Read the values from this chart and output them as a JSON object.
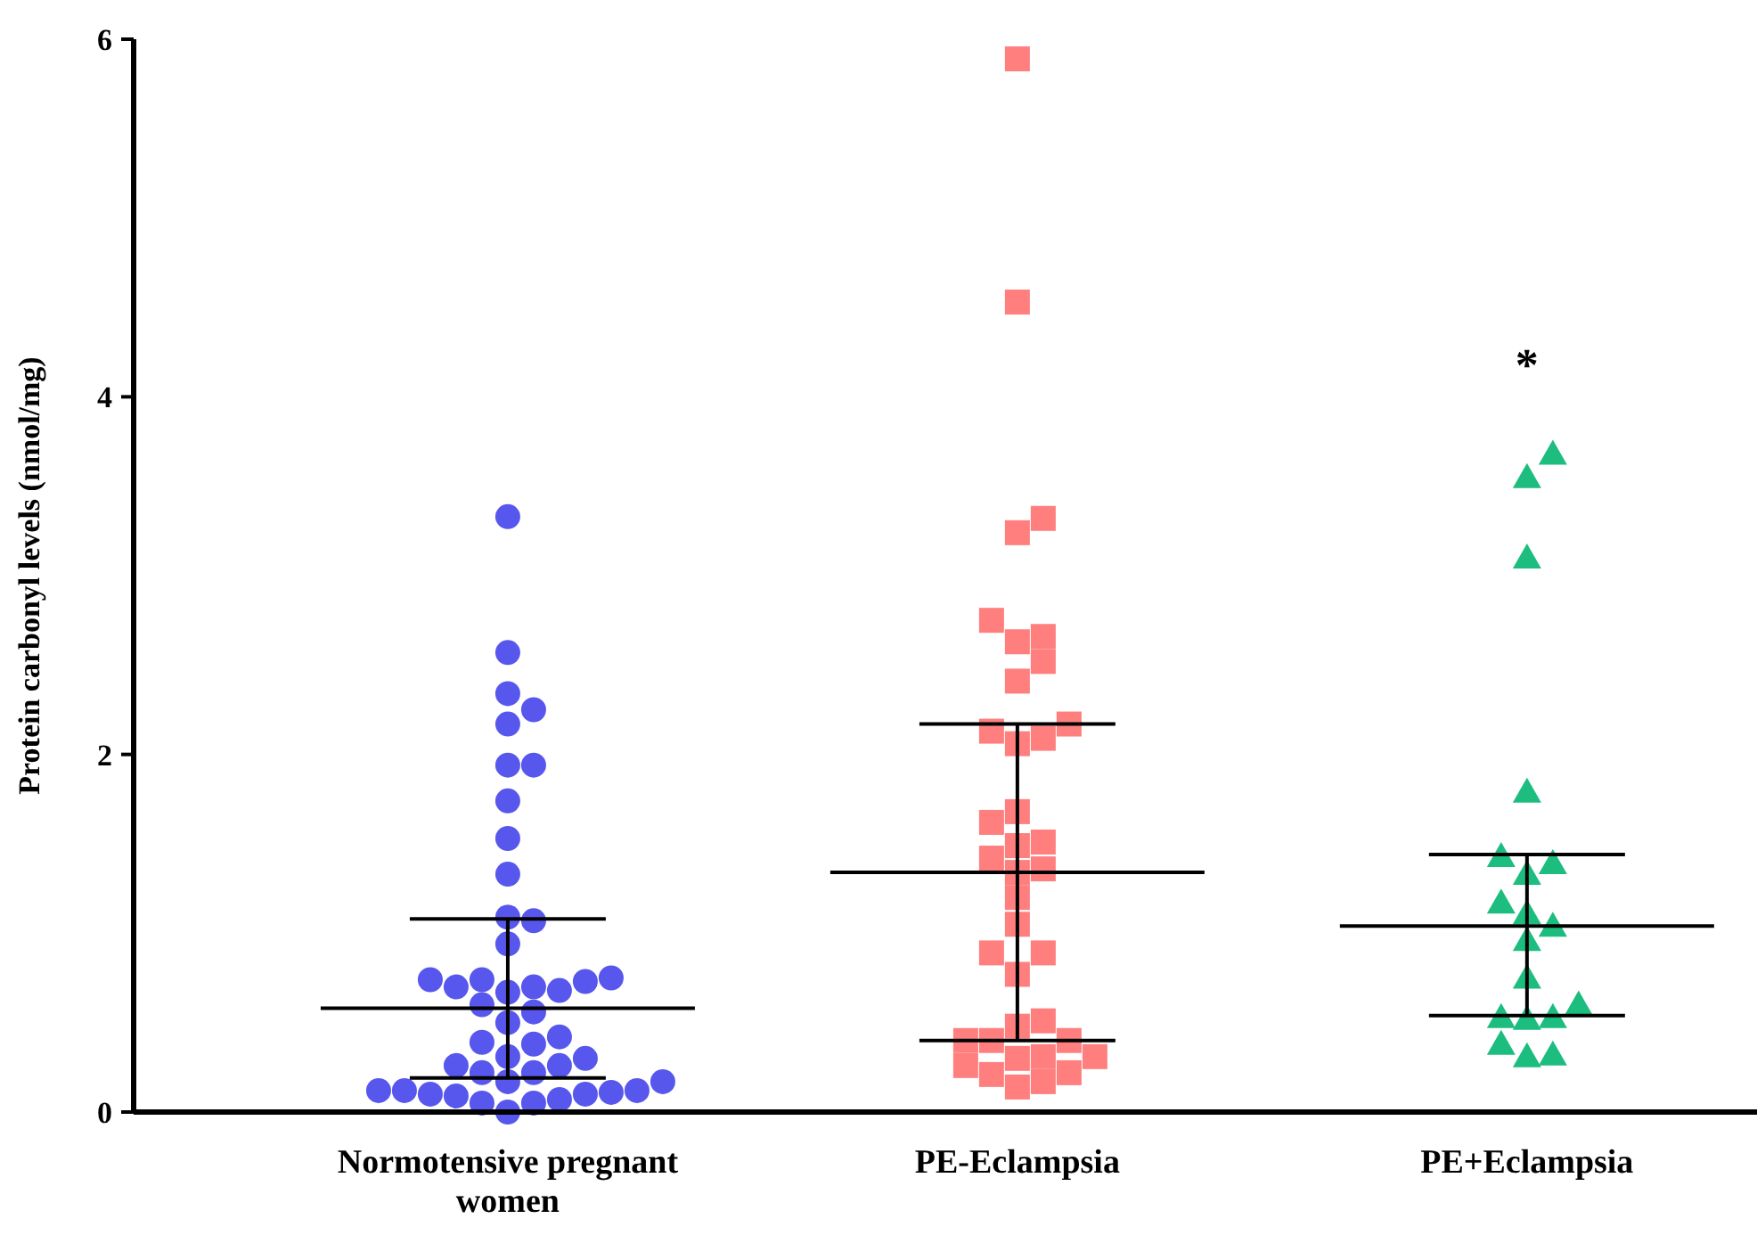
{
  "chart_data": {
    "type": "scatter",
    "ylabel": "Protein carbonyl levels (nmol/mg)",
    "categories": [
      "Normotensive pregnant women",
      "PE-Eclampsia",
      "PE+Eclampsia"
    ],
    "ylim": [
      0,
      6
    ],
    "yticks": [
      0,
      2,
      4,
      6
    ],
    "grid": false,
    "series": [
      {
        "marker": "circle",
        "color": "#5757ee",
        "x": [
          "Normotensive pregnant women",
          "Normotensive pregnant women",
          "Normotensive pregnant women",
          "Normotensive pregnant women",
          "Normotensive pregnant women",
          "Normotensive pregnant women",
          "Normotensive pregnant women",
          "Normotensive pregnant women",
          "Normotensive pregnant women",
          "Normotensive pregnant women",
          "Normotensive pregnant women",
          "Normotensive pregnant women",
          "Normotensive pregnant women",
          "Normotensive pregnant women",
          "Normotensive pregnant women",
          "Normotensive pregnant women",
          "Normotensive pregnant women",
          "Normotensive pregnant women",
          "Normotensive pregnant women",
          "Normotensive pregnant women",
          "Normotensive pregnant women",
          "Normotensive pregnant women",
          "Normotensive pregnant women",
          "Normotensive pregnant women",
          "Normotensive pregnant women",
          "Normotensive pregnant women",
          "Normotensive pregnant women",
          "Normotensive pregnant women",
          "Normotensive pregnant women",
          "Normotensive pregnant women",
          "Normotensive pregnant women",
          "Normotensive pregnant women",
          "Normotensive pregnant women",
          "Normotensive pregnant women",
          "Normotensive pregnant women",
          "Normotensive pregnant women",
          "Normotensive pregnant women",
          "Normotensive pregnant women",
          "Normotensive pregnant women",
          "Normotensive pregnant women",
          "Normotensive pregnant women",
          "Normotensive pregnant women",
          "Normotensive pregnant women",
          "Normotensive pregnant women",
          "Normotensive pregnant women",
          "Normotensive pregnant women"
        ],
        "values": [
          3.33,
          2.57,
          2.34,
          2.25,
          2.17,
          1.94,
          1.94,
          1.74,
          1.53,
          1.33,
          1.09,
          1.07,
          0.94,
          0.75,
          0.74,
          0.7,
          0.68,
          0.67,
          0.7,
          0.73,
          0.74,
          0.6,
          0.56,
          0.5,
          0.42,
          0.39,
          0.38,
          0.31,
          0.3,
          0.26,
          0.26,
          0.22,
          0.22,
          0.17,
          0.12,
          0.1,
          0.09,
          0.05,
          0.05,
          0.07,
          0.1,
          0.11,
          0.12,
          0.0,
          0.17,
          0.12
        ]
      },
      {
        "marker": "square",
        "color": "#ff7f7f",
        "x": [
          "PE-Eclampsia",
          "PE-Eclampsia",
          "PE-Eclampsia",
          "PE-Eclampsia",
          "PE-Eclampsia",
          "PE-Eclampsia",
          "PE-Eclampsia",
          "PE-Eclampsia",
          "PE-Eclampsia",
          "PE-Eclampsia",
          "PE-Eclampsia",
          "PE-Eclampsia",
          "PE-Eclampsia",
          "PE-Eclampsia",
          "PE-Eclampsia",
          "PE-Eclampsia",
          "PE-Eclampsia",
          "PE-Eclampsia",
          "PE-Eclampsia",
          "PE-Eclampsia",
          "PE-Eclampsia",
          "PE-Eclampsia",
          "PE-Eclampsia",
          "PE-Eclampsia",
          "PE-Eclampsia",
          "PE-Eclampsia",
          "PE-Eclampsia",
          "PE-Eclampsia",
          "PE-Eclampsia",
          "PE-Eclampsia",
          "PE-Eclampsia",
          "PE-Eclampsia",
          "PE-Eclampsia",
          "PE-Eclampsia",
          "PE-Eclampsia",
          "PE-Eclampsia",
          "PE-Eclampsia",
          "PE-Eclampsia"
        ],
        "values": [
          5.89,
          4.53,
          3.32,
          3.24,
          2.75,
          2.66,
          2.63,
          2.52,
          2.41,
          2.17,
          2.09,
          2.06,
          2.13,
          1.68,
          1.62,
          1.49,
          1.51,
          1.42,
          1.36,
          1.34,
          1.2,
          1.05,
          0.89,
          0.89,
          0.77,
          0.48,
          0.51,
          0.4,
          0.4,
          0.4,
          0.31,
          0.3,
          0.31,
          0.22,
          0.26,
          0.21,
          0.17,
          0.14
        ]
      },
      {
        "marker": "triangle",
        "color": "#1dbd80",
        "x": [
          "PE+Eclampsia",
          "PE+Eclampsia",
          "PE+Eclampsia",
          "PE+Eclampsia",
          "PE+Eclampsia",
          "PE+Eclampsia",
          "PE+Eclampsia",
          "PE+Eclampsia",
          "PE+Eclampsia",
          "PE+Eclampsia",
          "PE+Eclampsia",
          "PE+Eclampsia",
          "PE+Eclampsia",
          "PE+Eclampsia",
          "PE+Eclampsia",
          "PE+Eclampsia",
          "PE+Eclampsia",
          "PE+Eclampsia",
          "PE+Eclampsia"
        ],
        "values": [
          3.68,
          3.55,
          3.1,
          1.79,
          1.43,
          1.39,
          1.33,
          1.17,
          1.11,
          1.04,
          0.96,
          0.75,
          0.6,
          0.53,
          0.52,
          0.53,
          0.38,
          0.31,
          0.32
        ]
      },
      {
        "type": "box",
        "color": "#000000",
        "x": [
          "Normotensive pregnant women",
          "PE-Eclampsia",
          "PE+Eclampsia"
        ],
        "boxes": [
          {
            "low": 0.19,
            "q1": 0.58,
            "median": 0.58,
            "q3": 0.58,
            "high": 1.08
          },
          {
            "low": 0.4,
            "q1": 1.34,
            "median": 1.34,
            "q3": 1.34,
            "high": 2.17
          },
          {
            "low": 0.54,
            "q1": 1.04,
            "median": 1.04,
            "q3": 1.04,
            "high": 1.44
          }
        ]
      }
    ],
    "annotations": [
      "*"
    ]
  }
}
